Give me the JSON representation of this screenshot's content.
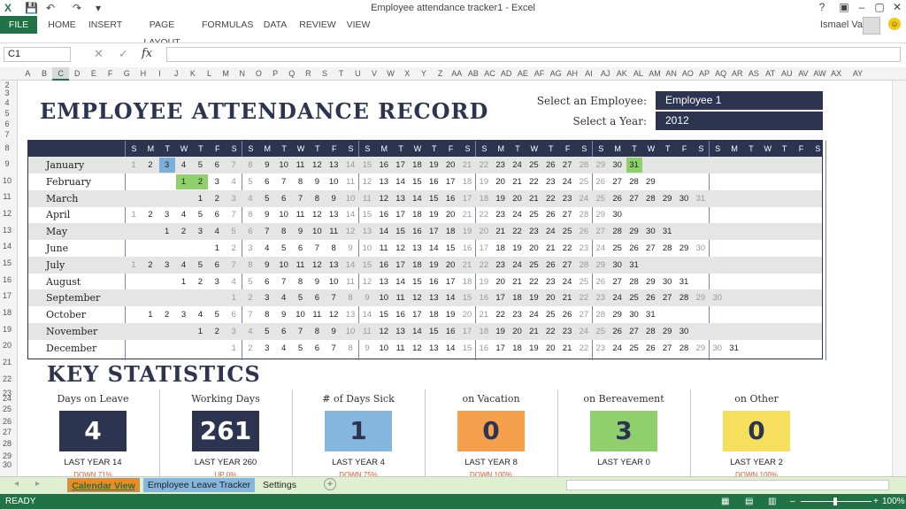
{
  "app": {
    "title": "Employee attendance tracker1 - Excel",
    "user": "Ismael Valle"
  },
  "ribbon": {
    "tabs": [
      "FILE",
      "HOME",
      "INSERT",
      "PAGE LAYOUT",
      "FORMULAS",
      "DATA",
      "REVIEW",
      "VIEW"
    ]
  },
  "formula_bar": {
    "name_box": "C1",
    "formula": "",
    "fx": "fx"
  },
  "columns": [
    "A",
    "B",
    "C",
    "D",
    "E",
    "F",
    "G",
    "H",
    "I",
    "J",
    "K",
    "L",
    "M",
    "N",
    "O",
    "P",
    "Q",
    "R",
    "S",
    "T",
    "U",
    "V",
    "W",
    "X",
    "Y",
    "Z",
    "AA",
    "AB",
    "AC",
    "AD",
    "AE",
    "AF",
    "AG",
    "AH",
    "AI",
    "AJ",
    "AK",
    "AL",
    "AM",
    "AN",
    "AO",
    "AP",
    "AQ",
    "AR",
    "AS",
    "AT",
    "AU",
    "AV",
    "AW",
    "AX",
    "AY"
  ],
  "rows": [
    "2",
    "3",
    "4",
    "5",
    "6",
    "7",
    "8",
    "9",
    "10",
    "11",
    "12",
    "13",
    "14",
    "15",
    "16",
    "17",
    "18",
    "19",
    "20",
    "21",
    "22",
    "23",
    "24",
    "25",
    "26",
    "27",
    "28",
    "29",
    "30"
  ],
  "sheet": {
    "heading": "EMPLOYEE ATTENDANCE RECORD",
    "employee_label": "Select an Employee:",
    "employee_value": "Employee 1",
    "year_label": "Select a Year:",
    "year_value": "2012",
    "dow": [
      "S",
      "M",
      "T",
      "W",
      "T",
      "F",
      "S",
      "S",
      "M",
      "T",
      "W",
      "T",
      "F",
      "S",
      "S",
      "M",
      "T",
      "W",
      "T",
      "F",
      "S",
      "S",
      "M",
      "T",
      "W",
      "T",
      "F",
      "S",
      "S",
      "M",
      "T",
      "W",
      "T",
      "F",
      "S",
      "S",
      "M",
      "T",
      "W",
      "T",
      "F",
      "S"
    ],
    "months": [
      {
        "name": "January",
        "start": 0,
        "days": 31,
        "highlights": {
          "3": "blue",
          "31": "green"
        }
      },
      {
        "name": "February",
        "start": 3,
        "days": 29,
        "highlights": {
          "1": "green",
          "2": "green"
        }
      },
      {
        "name": "March",
        "start": 4,
        "days": 31,
        "highlights": {}
      },
      {
        "name": "April",
        "start": 0,
        "days": 30,
        "highlights": {}
      },
      {
        "name": "May",
        "start": 2,
        "days": 31,
        "highlights": {}
      },
      {
        "name": "June",
        "start": 5,
        "days": 30,
        "highlights": {}
      },
      {
        "name": "July",
        "start": 0,
        "days": 31,
        "highlights": {}
      },
      {
        "name": "August",
        "start": 3,
        "days": 31,
        "highlights": {}
      },
      {
        "name": "September",
        "start": 6,
        "days": 30,
        "highlights": {}
      },
      {
        "name": "October",
        "start": 1,
        "days": 31,
        "highlights": {}
      },
      {
        "name": "November",
        "start": 4,
        "days": 30,
        "highlights": {}
      },
      {
        "name": "December",
        "start": 6,
        "days": 31,
        "highlights": {}
      }
    ]
  },
  "stats": {
    "title": "KEY STATISTICS",
    "items": [
      {
        "label": "Days on Leave",
        "value": "4",
        "last": "LAST YEAR  14",
        "trend": "DOWN 71%",
        "bg": "#2d3450",
        "fg": "#ffffff"
      },
      {
        "label": "Working Days",
        "value": "261",
        "last": "LAST YEAR 260",
        "trend": "UP 0%",
        "bg": "#2d3450",
        "fg": "#ffffff"
      },
      {
        "label": "# of Days Sick",
        "value": "1",
        "last": "LAST YEAR 4",
        "trend": "DOWN 75%",
        "bg": "#85b6dd",
        "fg": "#2d3450"
      },
      {
        "label": "on Vacation",
        "value": "0",
        "last": "LAST YEAR 8",
        "trend": "DOWN 100%",
        "bg": "#f5a04d",
        "fg": "#2d3450"
      },
      {
        "label": "on Bereavement",
        "value": "3",
        "last": "LAST YEAR 0",
        "trend": "",
        "bg": "#8fcf6c",
        "fg": "#2d3450"
      },
      {
        "label": "on Other",
        "value": "0",
        "last": "LAST YEAR 2",
        "trend": "DOWN 100%",
        "bg": "#f7df5e",
        "fg": "#2d3450"
      }
    ]
  },
  "sheet_tabs": [
    {
      "label": "Calendar View",
      "bg": "#dff0d0",
      "active": true
    },
    {
      "label": "Employee Leave Tracker",
      "bg": "#f28a1a",
      "active": false
    },
    {
      "label": "Settings",
      "bg": "#85b6dd",
      "active": false
    }
  ],
  "status": {
    "ready": "READY",
    "zoom": "100%"
  }
}
